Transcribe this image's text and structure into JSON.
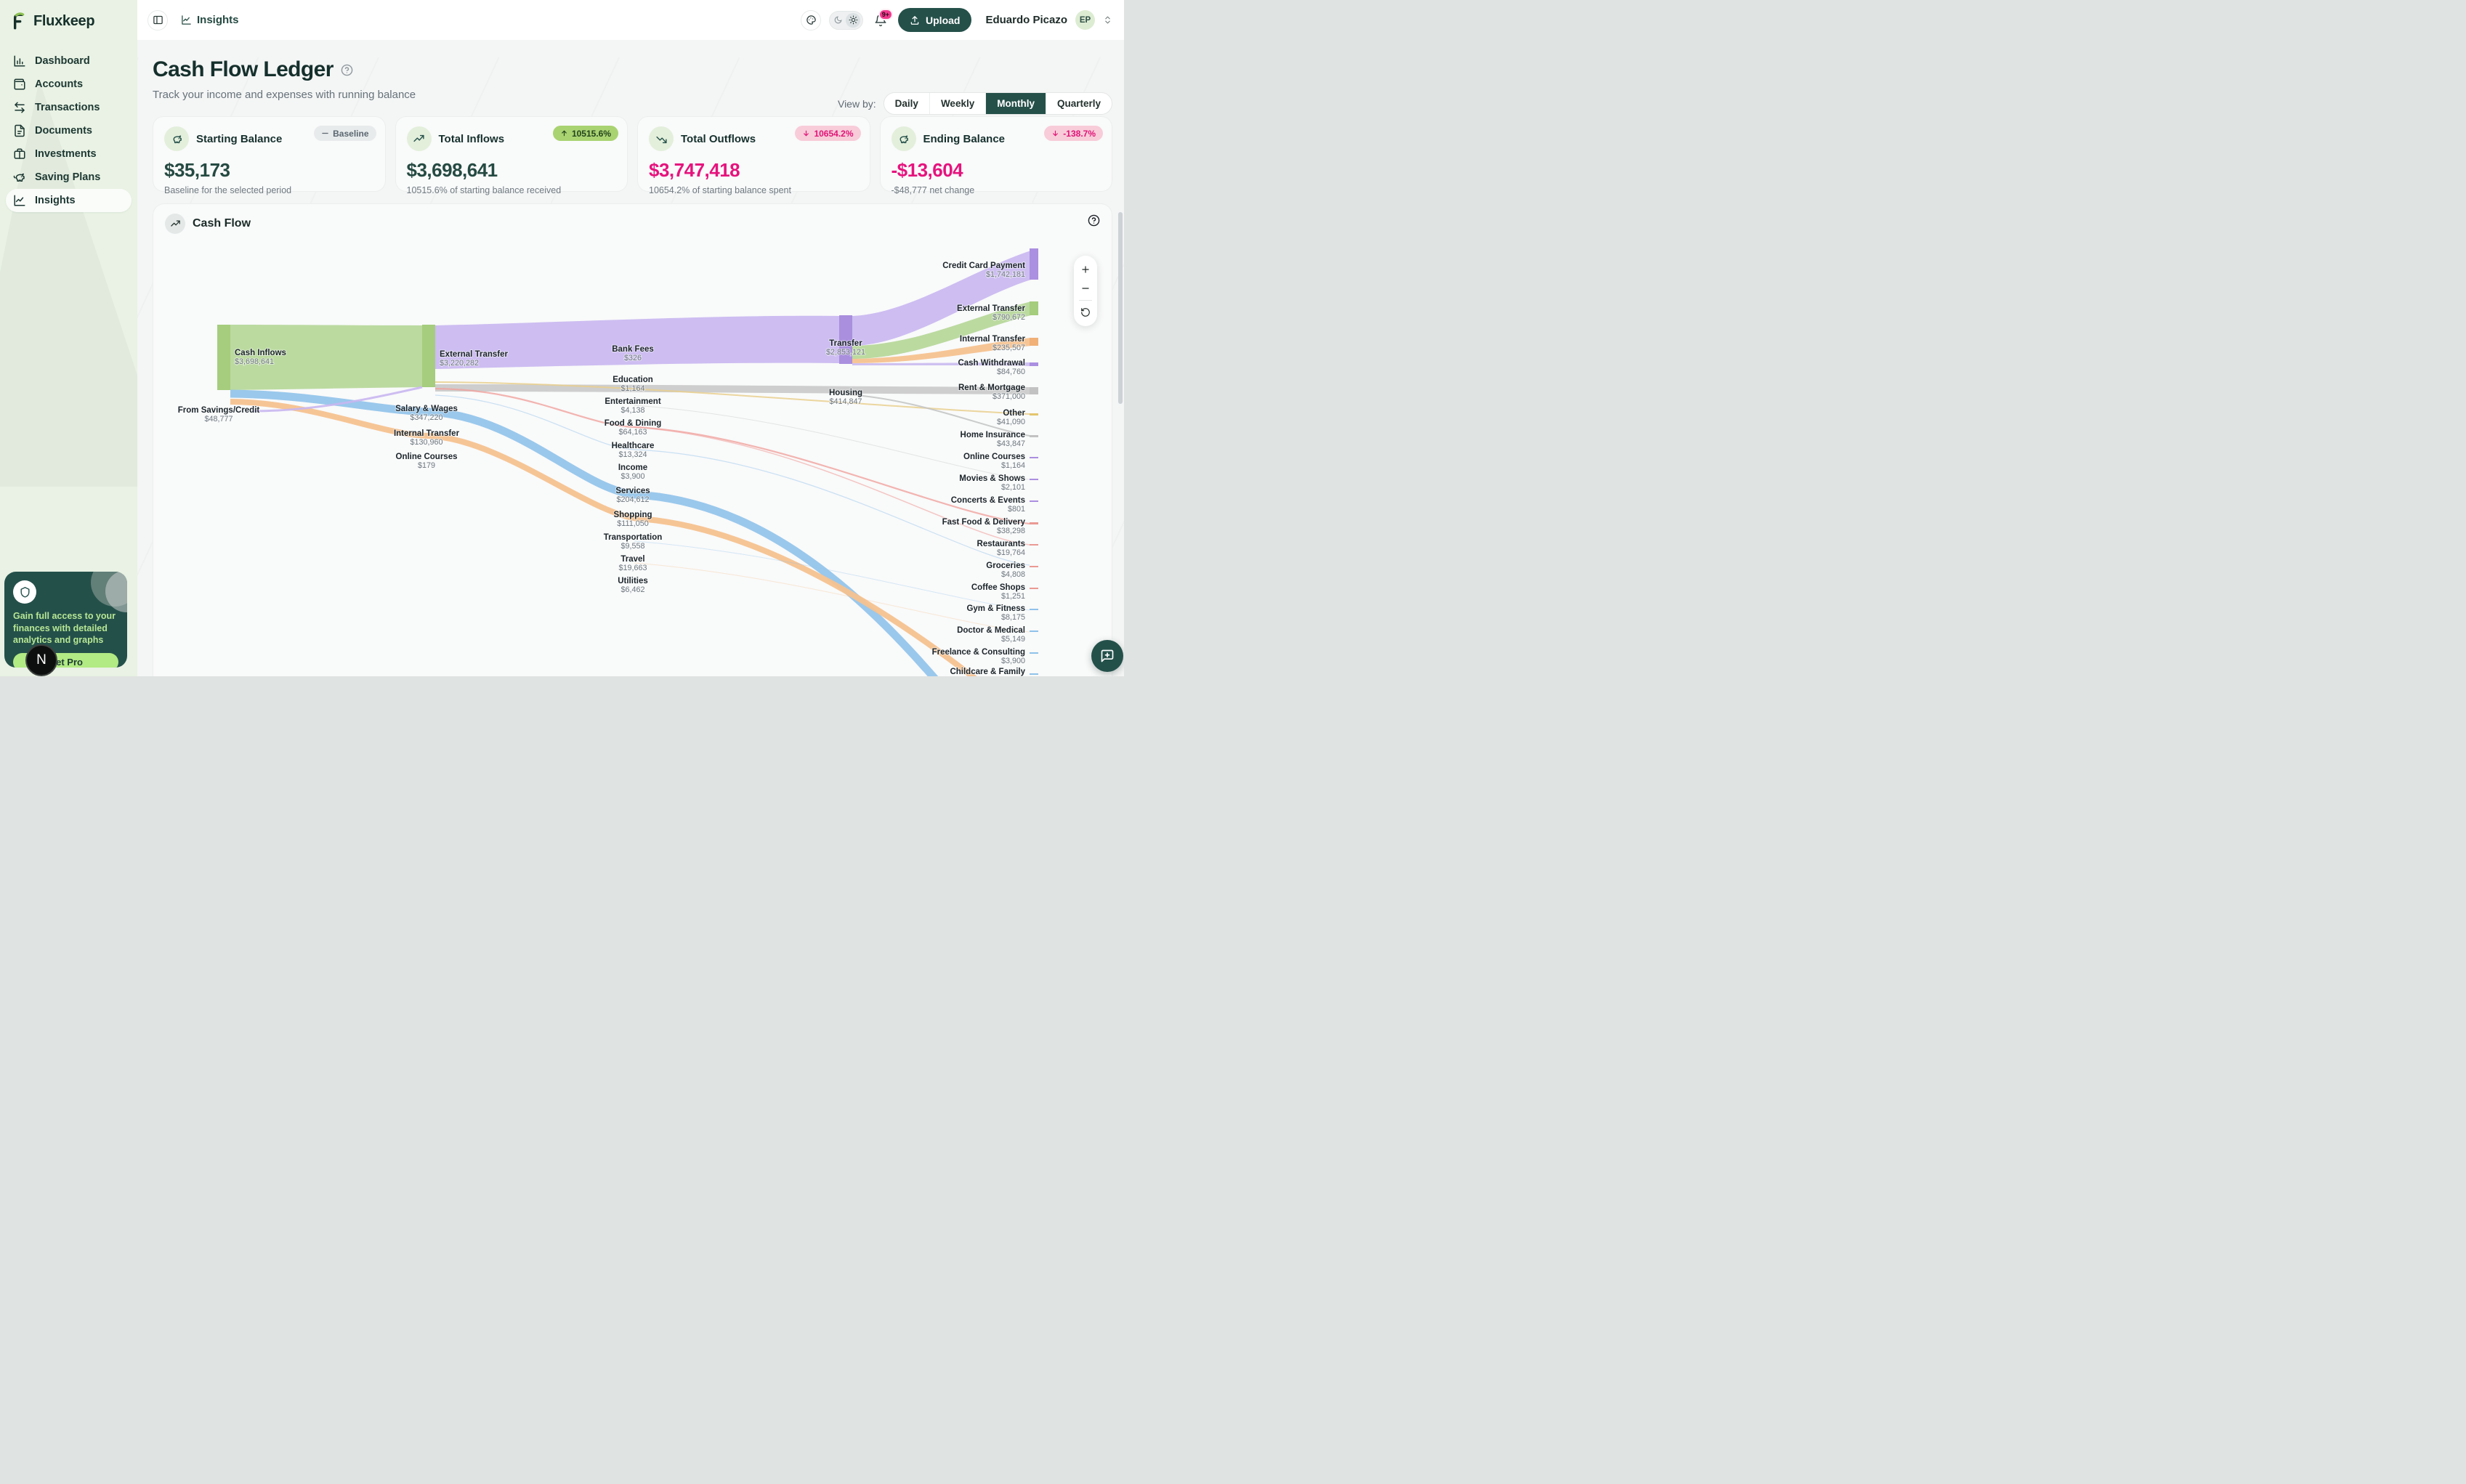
{
  "brand": {
    "name": "Fluxkeep"
  },
  "sidebar": {
    "items": [
      {
        "label": "Dashboard",
        "icon": "bar-chart-icon"
      },
      {
        "label": "Accounts",
        "icon": "wallet-icon"
      },
      {
        "label": "Transactions",
        "icon": "transfer-arrows-icon"
      },
      {
        "label": "Documents",
        "icon": "document-icon"
      },
      {
        "label": "Investments",
        "icon": "briefcase-icon"
      },
      {
        "label": "Saving Plans",
        "icon": "piggy-bank-icon"
      },
      {
        "label": "Insights",
        "icon": "chart-line-icon",
        "active": true
      }
    ],
    "promo": {
      "text": "Gain full access to your finances with detailed analytics and graphs",
      "button_label": "Get Pro"
    },
    "dev_badge": "N"
  },
  "header": {
    "breadcrumb": "Insights",
    "notifications_badge": "9+",
    "upload_label": "Upload",
    "user": {
      "name": "Eduardo Picazo",
      "initials": "EP"
    }
  },
  "page": {
    "title": "Cash Flow Ledger",
    "subtitle": "Track your income and expenses with running balance",
    "view_by_label": "View by:",
    "view_options": [
      "Daily",
      "Weekly",
      "Monthly",
      "Quarterly"
    ],
    "selected_view": "Monthly"
  },
  "stats": [
    {
      "title": "Starting Balance",
      "badge_text": "Baseline",
      "badge_dir": "flat",
      "value": "$35,173",
      "description": "Baseline for the selected period",
      "icon": "piggy-bank-icon"
    },
    {
      "title": "Total Inflows",
      "badge_text": "10515.6%",
      "badge_dir": "up",
      "value": "$3,698,641",
      "description": "10515.6% of starting balance received",
      "icon": "trending-up-icon"
    },
    {
      "title": "Total Outflows",
      "badge_text": "10654.2%",
      "badge_dir": "down",
      "value": "$3,747,418",
      "description": "10654.2% of starting balance spent",
      "icon": "trending-down-icon"
    },
    {
      "title": "Ending Balance",
      "badge_text": "-138.7%",
      "badge_dir": "down",
      "value": "-$13,604",
      "description": "-$48,777 net change",
      "icon": "piggy-bank-icon"
    }
  ],
  "chart": {
    "title": "Cash Flow"
  },
  "chart_data": {
    "type": "sankey",
    "title": "Cash Flow",
    "note": "Values read from on-screen node labels; link values not individually labeled",
    "nodes": [
      {
        "id": "cash_inflows",
        "label": "Cash Inflows",
        "value": 3698641,
        "value_display": "$3,698,641",
        "column": 1,
        "color": "#a5cd7d"
      },
      {
        "id": "from_savings_credit",
        "label": "From Savings/Credit",
        "value": 48777,
        "value_display": "$48,777",
        "column": 1,
        "color": "#8fc2ea"
      },
      {
        "id": "external_transfer_mid",
        "label": "External Transfer",
        "value": 3220282,
        "value_display": "$3,220,282",
        "column": 2,
        "color": "#b49fe6"
      },
      {
        "id": "salary_wages",
        "label": "Salary & Wages",
        "value": 347220,
        "value_display": "$347,220",
        "column": 2,
        "color": "#8fc2ea"
      },
      {
        "id": "internal_transfer_mid",
        "label": "Internal Transfer",
        "value": 130960,
        "value_display": "$130,960",
        "column": 2,
        "color": "#f2b77f"
      },
      {
        "id": "online_courses_mid",
        "label": "Online Courses",
        "value": 179,
        "value_display": "$179",
        "column": 2,
        "color": "#b49fe6"
      },
      {
        "id": "bank_fees",
        "label": "Bank Fees",
        "value": 326,
        "value_display": "$326",
        "column": 3,
        "color": "#b49fe6"
      },
      {
        "id": "education",
        "label": "Education",
        "value": 1164,
        "value_display": "$1,164",
        "column": 3,
        "color": "#b49fe6"
      },
      {
        "id": "entertainment",
        "label": "Entertainment",
        "value": 4138,
        "value_display": "$4,138",
        "column": 3,
        "color": "#c6c6c6"
      },
      {
        "id": "food_dining",
        "label": "Food & Dining",
        "value": 64163,
        "value_display": "$64,163",
        "column": 3,
        "color": "#ea9a94"
      },
      {
        "id": "healthcare",
        "label": "Healthcare",
        "value": 13324,
        "value_display": "$13,324",
        "column": 3,
        "color": "#8fc2ea"
      },
      {
        "id": "income",
        "label": "Income",
        "value": 3900,
        "value_display": "$3,900",
        "column": 3,
        "color": "#8fc2ea"
      },
      {
        "id": "services",
        "label": "Services",
        "value": 204612,
        "value_display": "$204,612",
        "column": 3,
        "color": "#8fc2ea"
      },
      {
        "id": "shopping",
        "label": "Shopping",
        "value": 111050,
        "value_display": "$111,050",
        "column": 3,
        "color": "#f2b77f"
      },
      {
        "id": "transportation",
        "label": "Transportation",
        "value": 9558,
        "value_display": "$9,558",
        "column": 3,
        "color": "#f2b77f"
      },
      {
        "id": "travel",
        "label": "Travel",
        "value": 19663,
        "value_display": "$19,663",
        "column": 3,
        "color": "#8fc2ea"
      },
      {
        "id": "utilities",
        "label": "Utilities",
        "value": 6462,
        "value_display": "$6,462",
        "column": 3,
        "color": "#e3c66e"
      },
      {
        "id": "transfer",
        "label": "Transfer",
        "value": 2853121,
        "value_display": "$2,853,121",
        "column": 4,
        "color": "#b49fe6"
      },
      {
        "id": "housing",
        "label": "Housing",
        "value": 414847,
        "value_display": "$414,847",
        "column": 4,
        "color": "#c6c6c6"
      },
      {
        "id": "credit_card_payment",
        "label": "Credit Card Payment",
        "value": 1742181,
        "value_display": "$1,742,181",
        "column": 5,
        "color": "#b49fe6"
      },
      {
        "id": "external_transfer_out",
        "label": "External Transfer",
        "value": 790672,
        "value_display": "$790,672",
        "column": 5,
        "color": "#a5cd7d"
      },
      {
        "id": "internal_transfer_out",
        "label": "Internal Transfer",
        "value": 235507,
        "value_display": "$235,507",
        "column": 5,
        "color": "#f2b77f"
      },
      {
        "id": "cash_withdrawal",
        "label": "Cash Withdrawal",
        "value": 84760,
        "value_display": "$84,760",
        "column": 5,
        "color": "#b49fe6"
      },
      {
        "id": "rent_mortgage",
        "label": "Rent & Mortgage",
        "value": 371000,
        "value_display": "$371,000",
        "column": 5,
        "color": "#c6c6c6"
      },
      {
        "id": "other",
        "label": "Other",
        "value": 41090,
        "value_display": "$41,090",
        "column": 5,
        "color": "#e3c66e"
      },
      {
        "id": "home_insurance",
        "label": "Home Insurance",
        "value": 43847,
        "value_display": "$43,847",
        "column": 5,
        "color": "#c6c6c6"
      },
      {
        "id": "online_courses_out",
        "label": "Online Courses",
        "value": 1164,
        "value_display": "$1,164",
        "column": 5,
        "color": "#b49fe6"
      },
      {
        "id": "movies_shows",
        "label": "Movies & Shows",
        "value": 2101,
        "value_display": "$2,101",
        "column": 5,
        "color": "#b49fe6"
      },
      {
        "id": "concerts_events",
        "label": "Concerts & Events",
        "value": 801,
        "value_display": "$801",
        "column": 5,
        "color": "#b49fe6"
      },
      {
        "id": "fast_food_delivery",
        "label": "Fast Food & Delivery",
        "value": 38298,
        "value_display": "$38,298",
        "column": 5,
        "color": "#ea9a94"
      },
      {
        "id": "restaurants",
        "label": "Restaurants",
        "value": 19764,
        "value_display": "$19,764",
        "column": 5,
        "color": "#ea9a94"
      },
      {
        "id": "groceries",
        "label": "Groceries",
        "value": 4808,
        "value_display": "$4,808",
        "column": 5,
        "color": "#ea9a94"
      },
      {
        "id": "coffee_shops",
        "label": "Coffee Shops",
        "value": 1251,
        "value_display": "$1,251",
        "column": 5,
        "color": "#ea9a94"
      },
      {
        "id": "gym_fitness",
        "label": "Gym & Fitness",
        "value": 8175,
        "value_display": "$8,175",
        "column": 5,
        "color": "#8fc2ea"
      },
      {
        "id": "doctor_medical",
        "label": "Doctor & Medical",
        "value": 5149,
        "value_display": "$5,149",
        "column": 5,
        "color": "#8fc2ea"
      },
      {
        "id": "freelance_consulting",
        "label": "Freelance & Consulting",
        "value": 3900,
        "value_display": "$3,900",
        "column": 5,
        "color": "#8fc2ea"
      },
      {
        "id": "childcare_family",
        "label": "Childcare & Family",
        "value": null,
        "value_display": null,
        "column": 5,
        "color": "#8fc2ea"
      }
    ],
    "links": [
      {
        "source": "cash_inflows",
        "target": "external_transfer_mid"
      },
      {
        "source": "cash_inflows",
        "target": "salary_wages"
      },
      {
        "source": "cash_inflows",
        "target": "internal_transfer_mid"
      },
      {
        "source": "cash_inflows",
        "target": "online_courses_mid"
      },
      {
        "source": "from_savings_credit",
        "target": "external_transfer_mid"
      },
      {
        "source": "external_transfer_mid",
        "target": "transfer"
      },
      {
        "source": "external_transfer_mid",
        "target": "housing"
      },
      {
        "source": "transfer",
        "target": "credit_card_payment"
      },
      {
        "source": "transfer",
        "target": "external_transfer_out"
      },
      {
        "source": "transfer",
        "target": "internal_transfer_out"
      },
      {
        "source": "transfer",
        "target": "cash_withdrawal"
      },
      {
        "source": "housing",
        "target": "rent_mortgage"
      },
      {
        "source": "housing",
        "target": "home_insurance"
      },
      {
        "source": "salary_wages",
        "target": "services"
      },
      {
        "source": "internal_transfer_mid",
        "target": "shopping"
      },
      {
        "source": "food_dining",
        "target": "fast_food_delivery"
      },
      {
        "source": "food_dining",
        "target": "restaurants"
      }
    ]
  },
  "colors": {
    "accent_dark_green": "#25504a",
    "sidebar_bg": "#e9f2e4",
    "positive_badge_bg": "#a9d371",
    "negative_badge_bg": "#f8ccd9",
    "negative_value": "#e6137d",
    "positive_value": "#254a41",
    "sankey": {
      "green": "#a5cd7d",
      "purple": "#b49fe6",
      "blue": "#8fc2ea",
      "orange": "#f2b77f",
      "gray": "#c6c6c6",
      "yellow": "#e3c66e",
      "red": "#ea9a94"
    }
  }
}
